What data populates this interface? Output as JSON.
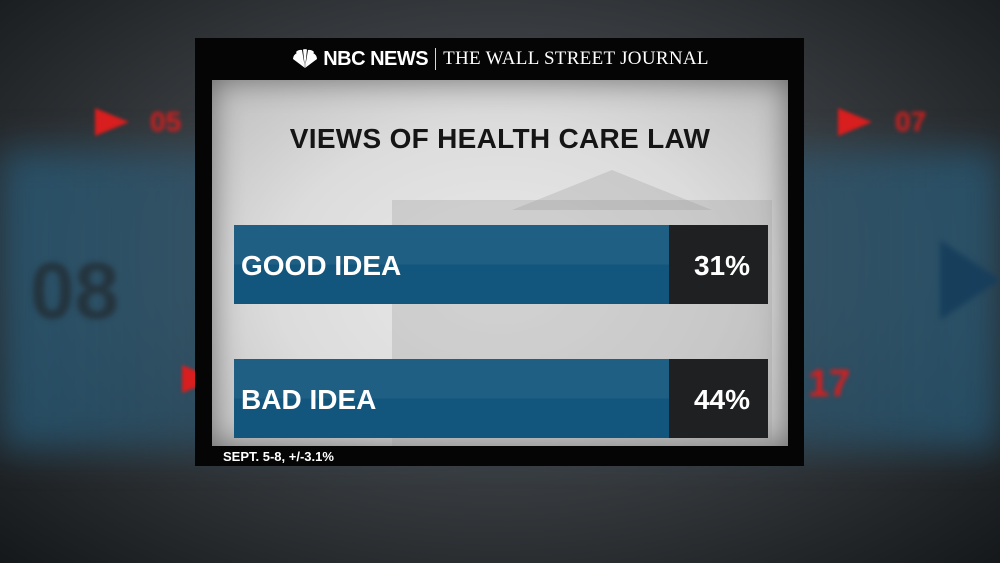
{
  "header": {
    "network": "NBC NEWS",
    "partner": "THE WALL STREET JOURNAL"
  },
  "background": {
    "labels": [
      "05",
      "07",
      "08",
      "17"
    ]
  },
  "chart_data": {
    "type": "bar",
    "title": "VIEWS OF HEALTH CARE LAW",
    "categories": [
      "GOOD IDEA",
      "BAD IDEA"
    ],
    "values": [
      31,
      44
    ],
    "value_labels": [
      "31%",
      "44%"
    ],
    "unit": "%",
    "bar_color": "#12557d",
    "value_box_color": "#1f2021"
  },
  "footnote": "SEPT. 5-8, +/-3.1%"
}
